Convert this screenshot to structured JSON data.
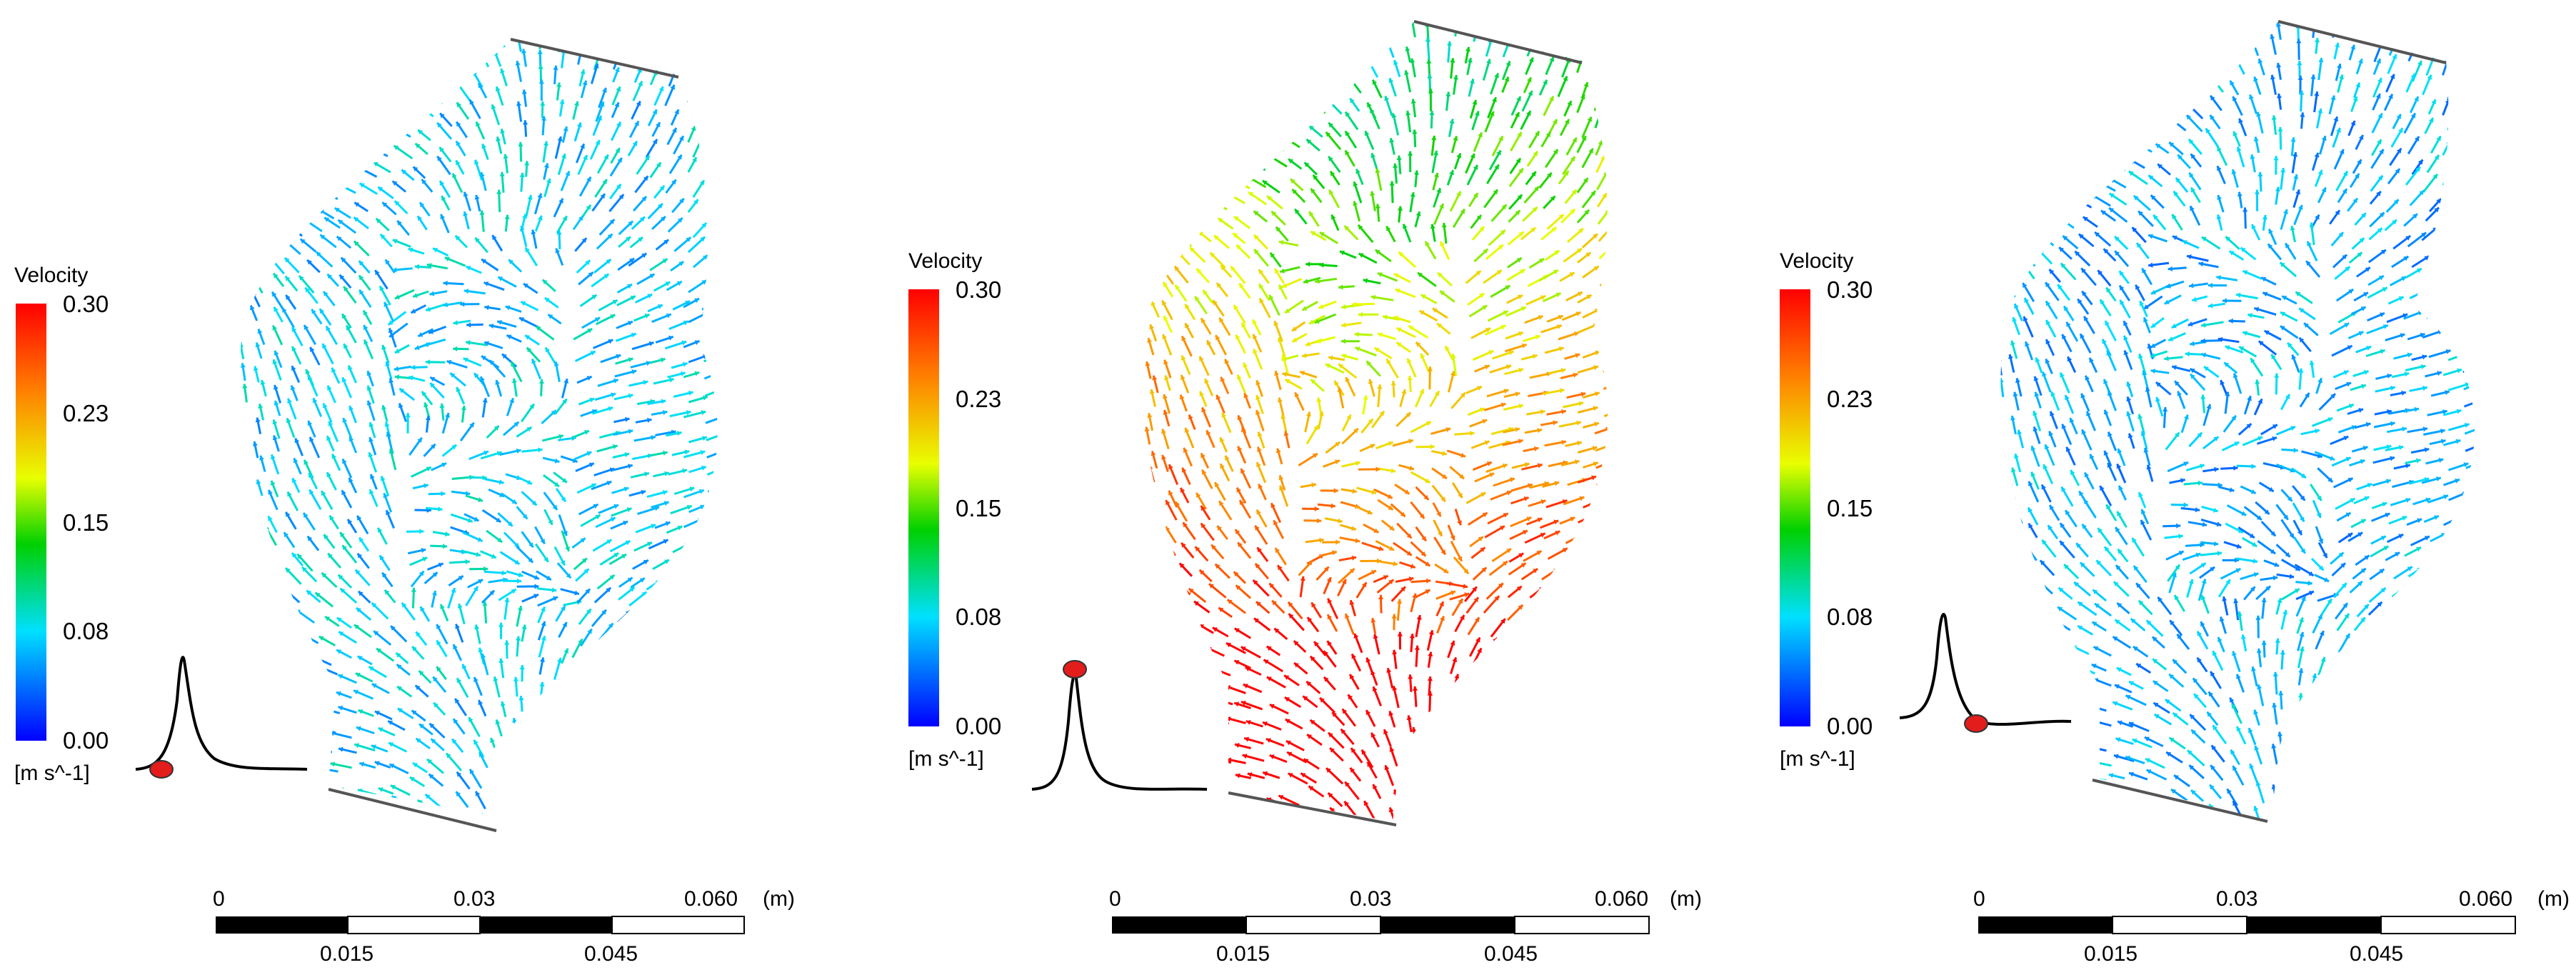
{
  "colorbar": {
    "title": "Velocity",
    "unit": "[m s^-1]",
    "ticks": [
      "0.30",
      "0.23",
      "0.15",
      "0.08",
      "0.00"
    ],
    "min": 0.0,
    "max": 0.3,
    "colors": [
      "#ff0000",
      "#ff7f00",
      "#ffff00",
      "#00cc00",
      "#00e5ff",
      "#0000ff"
    ]
  },
  "scalebar": {
    "top_labels": [
      "0",
      "0.03",
      "0.060"
    ],
    "bottom_labels": [
      "0.015",
      "0.045"
    ],
    "unit": "(m)"
  },
  "panels": [
    {
      "name": "panel-1",
      "phase": "early-systole",
      "velocity_level": 0.07
    },
    {
      "name": "panel-2",
      "phase": "peak-systole",
      "velocity_level": 0.2
    },
    {
      "name": "panel-3",
      "phase": "late-systole",
      "velocity_level": 0.06
    }
  ]
}
